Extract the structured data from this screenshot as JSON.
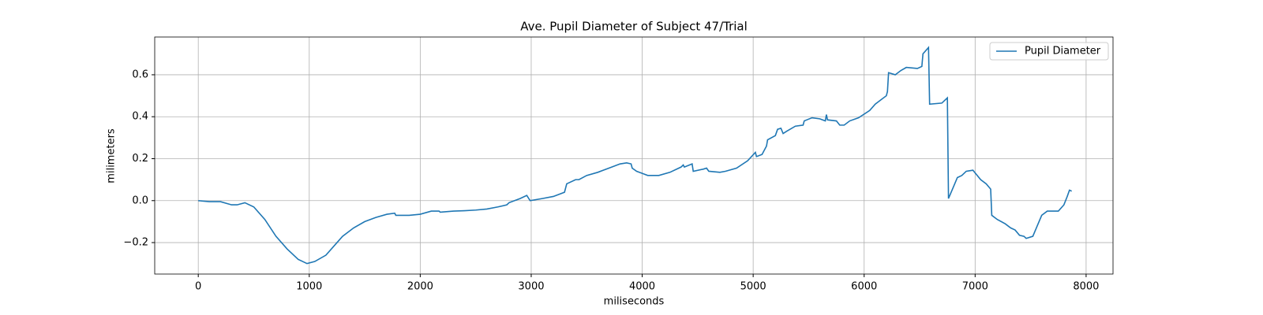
{
  "chart_data": {
    "type": "line",
    "title": "Ave. Pupil Diameter of Subject 47/Trial",
    "x_label": "miliseconds",
    "y_label": "milimeters",
    "x": [
      0,
      100,
      200,
      300,
      350,
      420,
      500,
      600,
      700,
      800,
      900,
      980,
      1050,
      1150,
      1250,
      1300,
      1400,
      1500,
      1600,
      1700,
      1770,
      1780,
      1900,
      2000,
      2100,
      2170,
      2180,
      2300,
      2400,
      2500,
      2600,
      2700,
      2780,
      2800,
      2900,
      2960,
      2990,
      3100,
      3200,
      3300,
      3320,
      3400,
      3430,
      3500,
      3600,
      3700,
      3800,
      3860,
      3900,
      3910,
      3950,
      4000,
      4050,
      4150,
      4250,
      4350,
      4370,
      4380,
      4450,
      4460,
      4550,
      4580,
      4600,
      4700,
      4750,
      4850,
      4950,
      5020,
      5030,
      5080,
      5120,
      5130,
      5200,
      5220,
      5250,
      5270,
      5300,
      5380,
      5450,
      5460,
      5530,
      5600,
      5650,
      5660,
      5670,
      5750,
      5780,
      5820,
      5870,
      5950,
      6050,
      6100,
      6150,
      6200,
      6210,
      6220,
      6280,
      6330,
      6380,
      6480,
      6520,
      6530,
      6580,
      6590,
      6700,
      6750,
      6760,
      6800,
      6840,
      6880,
      6920,
      6980,
      7050,
      7100,
      7140,
      7150,
      7200,
      7270,
      7320,
      7360,
      7400,
      7440,
      7460,
      7520,
      7560,
      7600,
      7650,
      7750,
      7800,
      7830,
      7850,
      7870
    ],
    "series": [
      {
        "name": "Pupil Diameter",
        "color": "#1f77b4",
        "values": [
          0,
          -0.005,
          -0.005,
          -0.02,
          -0.02,
          -0.01,
          -0.03,
          -0.09,
          -0.17,
          -0.23,
          -0.28,
          -0.3,
          -0.29,
          -0.26,
          -0.2,
          -0.17,
          -0.13,
          -0.1,
          -0.08,
          -0.065,
          -0.06,
          -0.07,
          -0.07,
          -0.065,
          -0.05,
          -0.05,
          -0.055,
          -0.05,
          -0.048,
          -0.045,
          -0.04,
          -0.03,
          -0.02,
          -0.01,
          0.01,
          0.025,
          0,
          0.01,
          0.02,
          0.04,
          0.08,
          0.1,
          0.1,
          0.12,
          0.135,
          0.155,
          0.175,
          0.18,
          0.175,
          0.155,
          0.14,
          0.13,
          0.12,
          0.12,
          0.135,
          0.16,
          0.17,
          0.16,
          0.175,
          0.14,
          0.15,
          0.155,
          0.14,
          0.135,
          0.14,
          0.155,
          0.19,
          0.23,
          0.21,
          0.22,
          0.26,
          0.29,
          0.31,
          0.34,
          0.345,
          0.32,
          0.33,
          0.355,
          0.36,
          0.38,
          0.395,
          0.39,
          0.38,
          0.41,
          0.385,
          0.38,
          0.36,
          0.36,
          0.38,
          0.395,
          0.43,
          0.46,
          0.48,
          0.5,
          0.52,
          0.61,
          0.6,
          0.62,
          0.635,
          0.63,
          0.64,
          0.7,
          0.73,
          0.46,
          0.465,
          0.49,
          0.01,
          0.06,
          0.11,
          0.12,
          0.14,
          0.145,
          0.1,
          0.08,
          0.055,
          -0.07,
          -0.09,
          -0.11,
          -0.13,
          -0.14,
          -0.165,
          -0.17,
          -0.18,
          -0.17,
          -0.12,
          -0.07,
          -0.05,
          -0.05,
          -0.02,
          0.02,
          0.05,
          0.045
        ]
      }
    ],
    "xlim": [
      -392.5,
      8242.5
    ],
    "xticks": [
      0,
      1000,
      2000,
      3000,
      4000,
      5000,
      6000,
      7000,
      8000
    ],
    "ylim": [
      -0.35,
      0.78
    ],
    "yticks": [
      {
        "value": -0.2,
        "label": "−0.2"
      },
      {
        "value": 0,
        "label": "0.0"
      },
      0.2,
      0.4,
      0.6
    ],
    "grid": true,
    "legend": "upper right"
  }
}
